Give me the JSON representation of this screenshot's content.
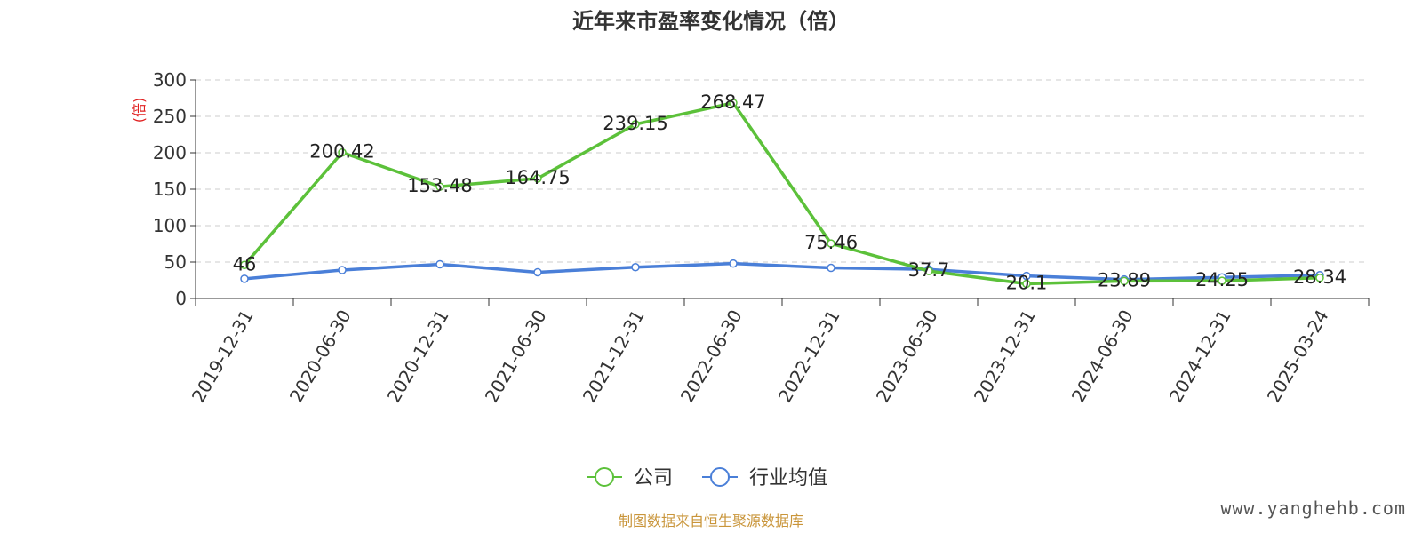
{
  "chart_data": {
    "type": "line",
    "title": "近年来市盈率变化情况（倍）",
    "ylabel": "(倍)",
    "ylim": [
      0,
      300
    ],
    "yticks": [
      0,
      50,
      100,
      150,
      200,
      250,
      300
    ],
    "grid": true,
    "categories": [
      "2019-12-31",
      "2020-06-30",
      "2020-12-31",
      "2021-06-30",
      "2021-12-31",
      "2022-06-30",
      "2022-12-31",
      "2023-06-30",
      "2023-12-31",
      "2024-06-30",
      "2024-12-31",
      "2025-03-24"
    ],
    "series": [
      {
        "name": "公司",
        "color": "#5cc13a",
        "values": [
          46,
          200.42,
          153.48,
          164.75,
          239.15,
          268.47,
          75.46,
          37.7,
          20.1,
          23.89,
          24.25,
          28.34
        ],
        "labels": [
          "46",
          "200.42",
          "153.48",
          "164.75",
          "239.15",
          "268.47",
          "75.46",
          "37.7",
          "20.1",
          "23.89",
          "24.25",
          "28.34"
        ]
      },
      {
        "name": "行业均值",
        "color": "#4a7fd8",
        "values": [
          27,
          39,
          47,
          36,
          43,
          48,
          42,
          40,
          31,
          26,
          29,
          32
        ]
      }
    ],
    "legend_position": "bottom-center",
    "source_note": "制图数据来自恒生聚源数据库",
    "source_color": "#c9953a"
  },
  "watermark": "www.yanghehb.com"
}
